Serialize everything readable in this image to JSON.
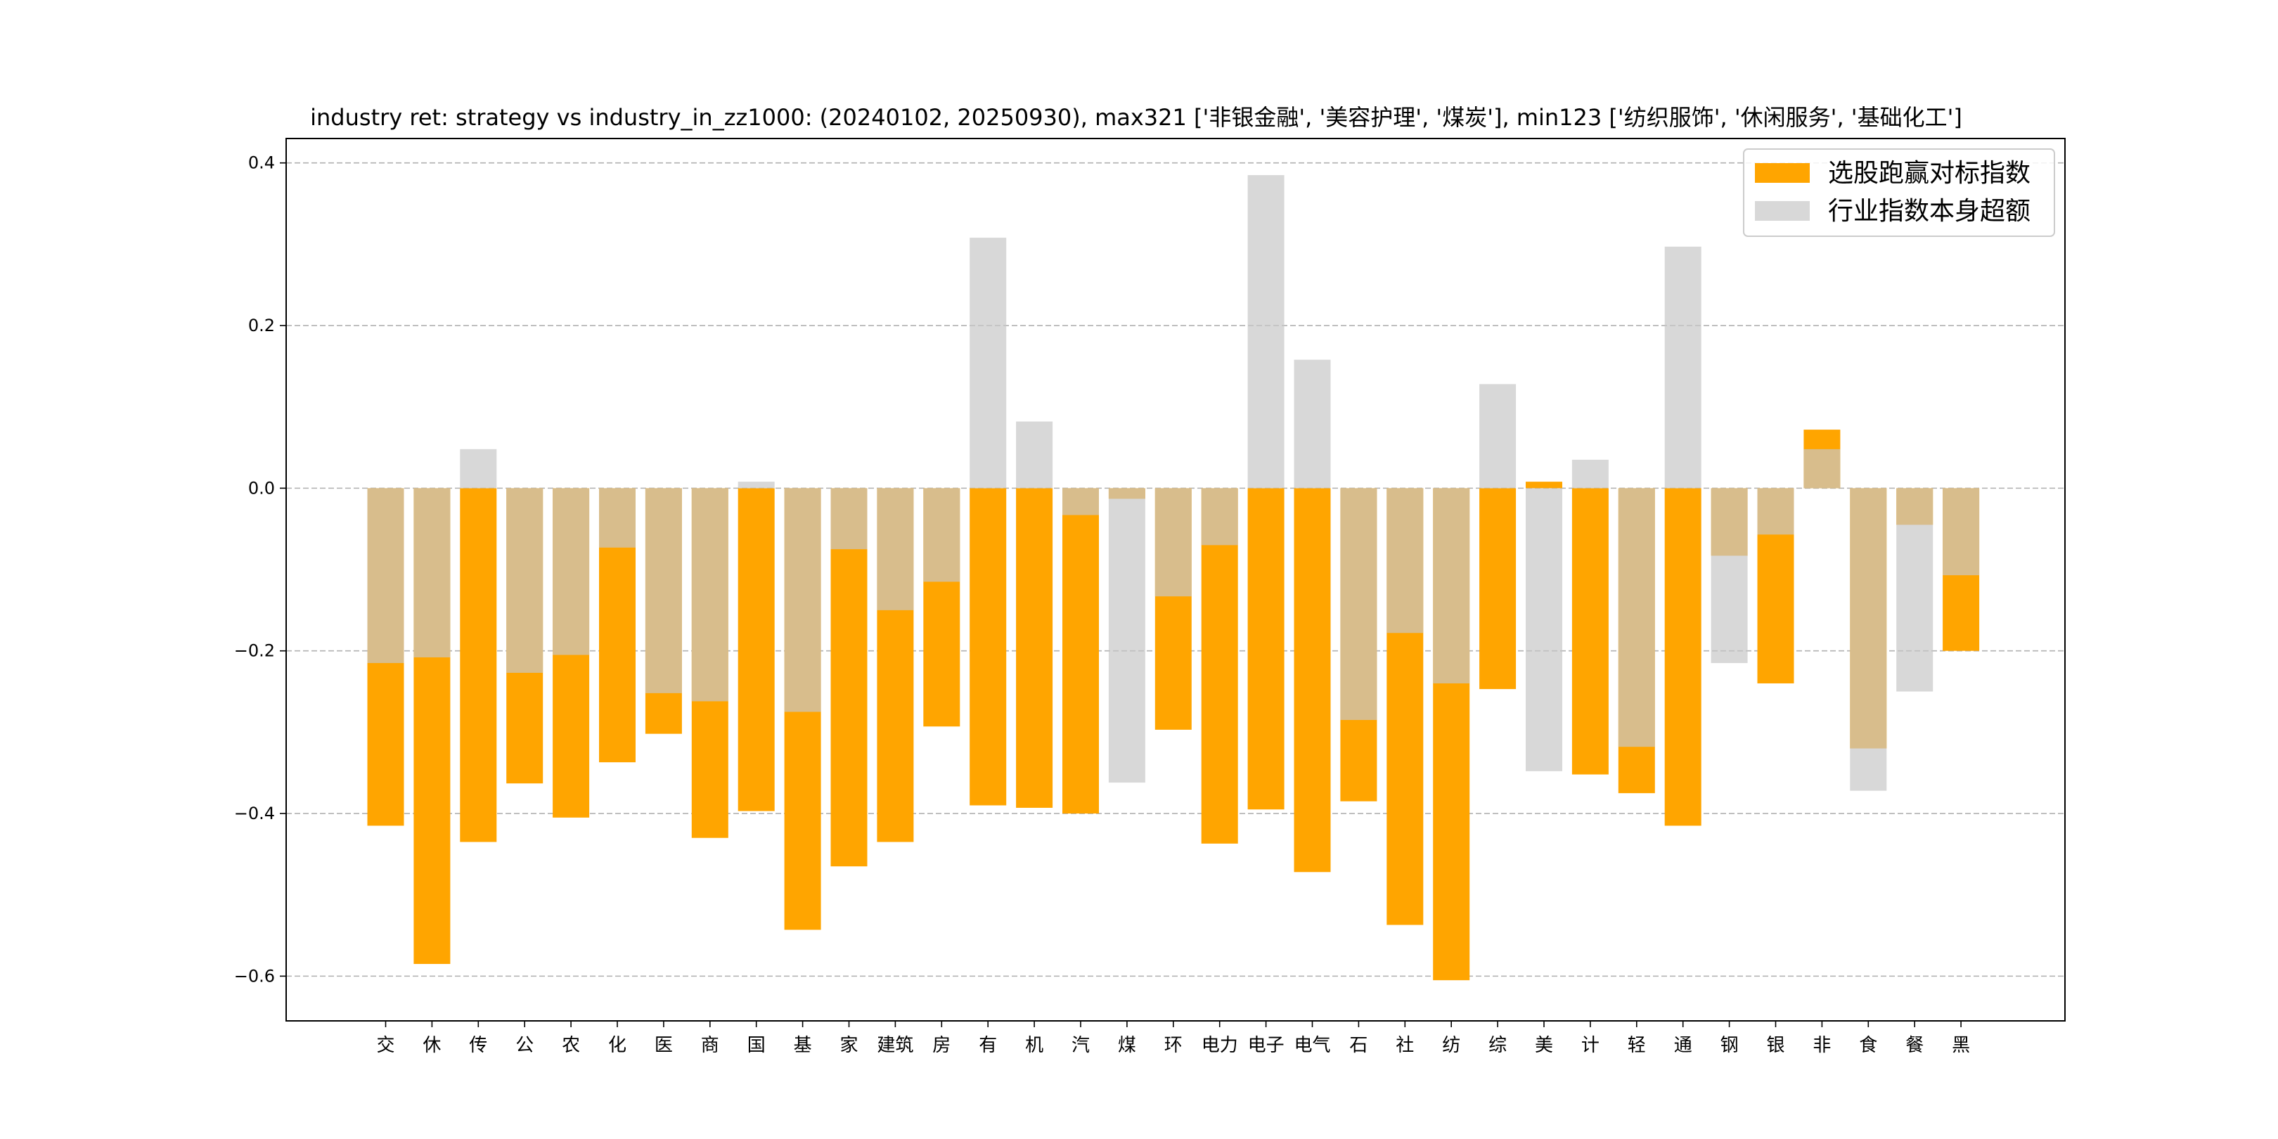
{
  "chart_data": {
    "type": "bar",
    "title": "industry ret: strategy vs industry_in_zz1000: (20240102, 20250930), max321 ['非银金融', '美容护理', '煤炭'], min123 ['纺织服饰', '休闲服务', '基础化工']",
    "xlabel": "",
    "ylabel": "",
    "ylim": [
      -0.655,
      0.43
    ],
    "yticks": [
      0.4,
      0.2,
      0.0,
      -0.2,
      -0.4,
      -0.6
    ],
    "ytick_labels": [
      "0.4",
      "0.2",
      "0.0",
      "−0.2",
      "−0.4",
      "−0.6"
    ],
    "grid": "horizontal dashed",
    "legend_position": "top-right",
    "categories": [
      "交",
      "休",
      "传",
      "公",
      "农",
      "化",
      "医",
      "商",
      "国",
      "基",
      "家",
      "建筑",
      "房",
      "有",
      "机",
      "汽",
      "煤",
      "环",
      "电力",
      "电子",
      "电气",
      "石",
      "社",
      "纺",
      "综",
      "美",
      "计",
      "轻",
      "通",
      "钢",
      "银",
      "非",
      "食",
      "餐",
      "黑"
    ],
    "series": [
      {
        "name": "选股跑赢对标指数",
        "color": "#FFA500",
        "alpha": 1.0,
        "values": [
          -0.415,
          -0.585,
          -0.435,
          -0.363,
          -0.405,
          -0.337,
          -0.302,
          -0.43,
          -0.397,
          -0.543,
          -0.465,
          -0.435,
          -0.293,
          -0.39,
          -0.393,
          -0.4,
          -0.013,
          -0.297,
          -0.437,
          -0.395,
          -0.472,
          -0.385,
          -0.537,
          -0.605,
          -0.247,
          0.008,
          -0.352,
          -0.375,
          -0.415,
          -0.083,
          -0.24,
          0.072,
          -0.32,
          -0.045,
          -0.2
        ]
      },
      {
        "name": "行业指数本身超额",
        "color": "#C8C8C8",
        "alpha": 0.7,
        "values": [
          -0.215,
          -0.208,
          0.048,
          -0.227,
          -0.205,
          -0.073,
          -0.252,
          -0.262,
          0.008,
          -0.275,
          -0.075,
          -0.15,
          -0.115,
          0.308,
          0.082,
          -0.033,
          -0.362,
          -0.133,
          -0.07,
          0.385,
          0.158,
          -0.285,
          -0.178,
          -0.24,
          0.128,
          -0.348,
          0.035,
          -0.318,
          0.297,
          -0.215,
          -0.057,
          0.048,
          -0.372,
          -0.25,
          -0.107
        ]
      }
    ]
  }
}
